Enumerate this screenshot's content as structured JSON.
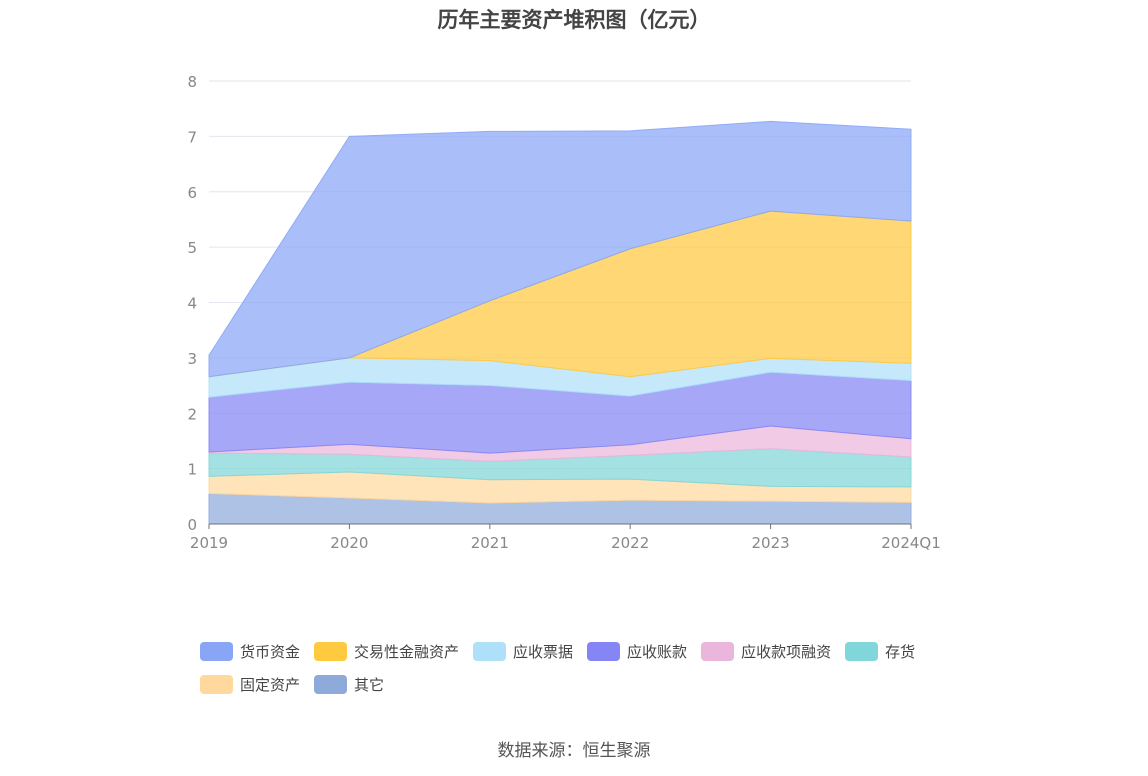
{
  "chart_data": {
    "type": "area",
    "stacked": true,
    "title": "历年主要资产堆积图（亿元）",
    "categories": [
      "2019",
      "2020",
      "2021",
      "2022",
      "2023",
      "2024Q1"
    ],
    "ylim": [
      0,
      8
    ],
    "yticks": [
      "0",
      "1",
      "2",
      "3",
      "4",
      "5",
      "6",
      "7",
      "8"
    ],
    "grid": true,
    "legend_position": "bottom",
    "series": [
      {
        "name": "其它",
        "color": "#8eaadb",
        "values": [
          0.55,
          0.47,
          0.38,
          0.43,
          0.41,
          0.39
        ]
      },
      {
        "name": "固定资产",
        "color": "#ffd89e",
        "values": [
          0.31,
          0.47,
          0.42,
          0.38,
          0.27,
          0.28
        ]
      },
      {
        "name": "存货",
        "color": "#80d6d8",
        "values": [
          0.42,
          0.32,
          0.33,
          0.43,
          0.68,
          0.54
        ]
      },
      {
        "name": "应收款项融资",
        "color": "#ebb6db",
        "values": [
          0.02,
          0.18,
          0.15,
          0.19,
          0.41,
          0.33
        ]
      },
      {
        "name": "应收账款",
        "color": "#8585f5",
        "values": [
          0.99,
          1.12,
          1.22,
          0.88,
          0.97,
          1.05
        ]
      },
      {
        "name": "应收票据",
        "color": "#aee0fa",
        "values": [
          0.37,
          0.44,
          0.45,
          0.35,
          0.25,
          0.31
        ]
      },
      {
        "name": "交易性金融资产",
        "color": "#ffc940",
        "values": [
          0.0,
          0.0,
          1.08,
          2.31,
          2.66,
          2.57
        ]
      },
      {
        "name": "货币资金",
        "color": "#89a6f6",
        "values": [
          0.39,
          4.0,
          3.06,
          2.13,
          1.62,
          1.66
        ]
      }
    ]
  },
  "legend": [
    {
      "label": "货币资金",
      "color": "#89a6f6"
    },
    {
      "label": "交易性金融资产",
      "color": "#ffc940"
    },
    {
      "label": "应收票据",
      "color": "#aee0fa"
    },
    {
      "label": "应收账款",
      "color": "#8585f5"
    },
    {
      "label": "应收款项融资",
      "color": "#ebb6db"
    },
    {
      "label": "存货",
      "color": "#80d6d8"
    },
    {
      "label": "固定资产",
      "color": "#ffd89e"
    },
    {
      "label": "其它",
      "color": "#8eaadb"
    }
  ],
  "source": "数据来源：恒生聚源"
}
